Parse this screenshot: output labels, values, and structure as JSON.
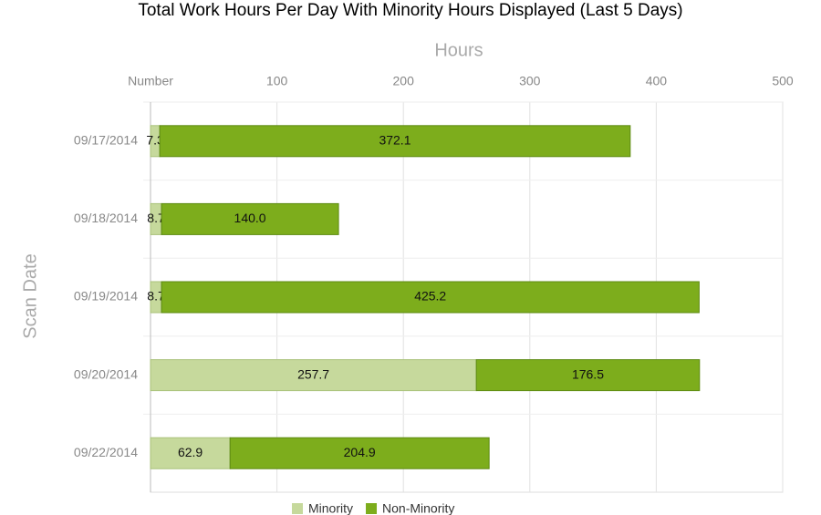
{
  "chart_data": {
    "type": "stacked-barh",
    "title": "Total Work Hours Per Day With Minority Hours Displayed (Last 5 Days)",
    "x_label": "Hours",
    "y_label": "Scan Date",
    "categories": [
      "09/17/2014",
      "09/18/2014",
      "09/19/2014",
      "09/20/2014",
      "09/22/2014"
    ],
    "series": [
      {
        "name": "Minority",
        "color": "#c6d99c",
        "values": [
          7.3,
          8.7,
          8.7,
          257.7,
          62.9
        ]
      },
      {
        "name": "Non-Minority",
        "color": "#7dad1c",
        "values": [
          372.1,
          140,
          425.2,
          176.5,
          204.9
        ],
        "value_labels": [
          "372.1",
          "140.0",
          "425.2",
          "176.5",
          "204.9"
        ]
      }
    ],
    "xlim": [
      0,
      500
    ],
    "xticks": [
      {
        "value": 0,
        "label": "Number"
      },
      100,
      200,
      300,
      400,
      500
    ],
    "grid": true,
    "legend": "bottom"
  }
}
